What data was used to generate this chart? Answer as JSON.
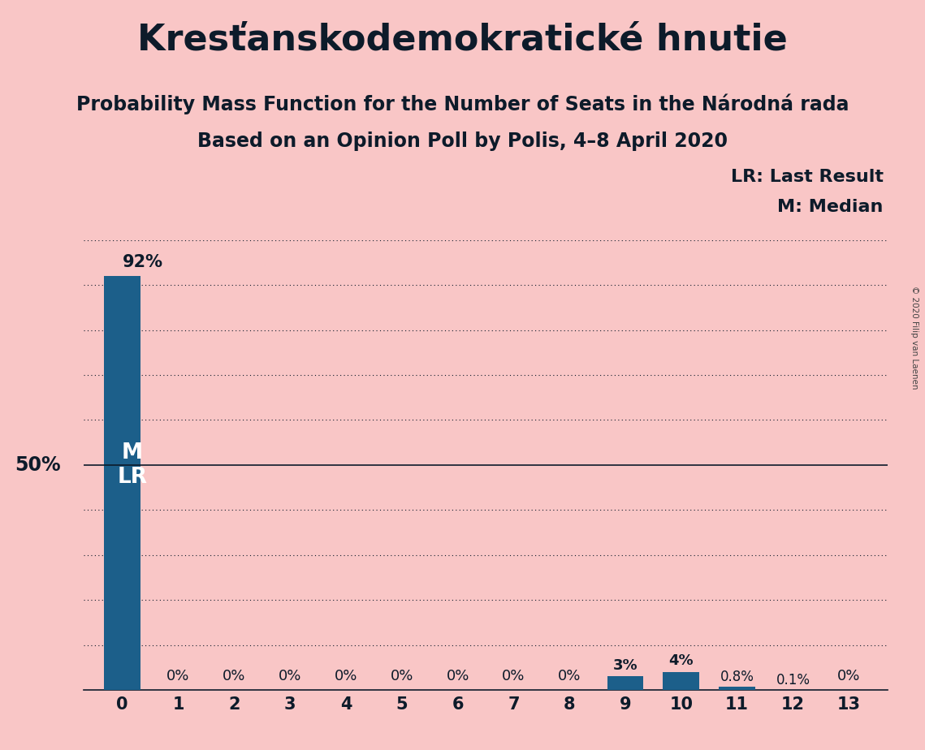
{
  "title": "Kresťanskodemokratické hnutie",
  "subtitle1": "Probability Mass Function for the Number of Seats in the Národná rada",
  "subtitle2": "Based on an Opinion Poll by Polis, 4–8 April 2020",
  "copyright": "© 2020 Filip van Laenen",
  "categories": [
    0,
    1,
    2,
    3,
    4,
    5,
    6,
    7,
    8,
    9,
    10,
    11,
    12,
    13
  ],
  "values": [
    92,
    0,
    0,
    0,
    0,
    0,
    0,
    0,
    0,
    3,
    4,
    0.8,
    0.1,
    0
  ],
  "bar_color": "#1c5f8a",
  "background_color": "#f9c6c6",
  "bar_labels": [
    "92%",
    "0%",
    "0%",
    "0%",
    "0%",
    "0%",
    "0%",
    "0%",
    "0%",
    "3%",
    "4%",
    "0.8%",
    "0.1%",
    "0%"
  ],
  "ylim": [
    0,
    100
  ],
  "title_fontsize": 32,
  "subtitle_fontsize": 17,
  "figsize": [
    11.39,
    9.24
  ],
  "dpi": 100,
  "text_color": "#0d1b2a",
  "legend_lr": "LR: Last Result",
  "legend_m": "M: Median"
}
